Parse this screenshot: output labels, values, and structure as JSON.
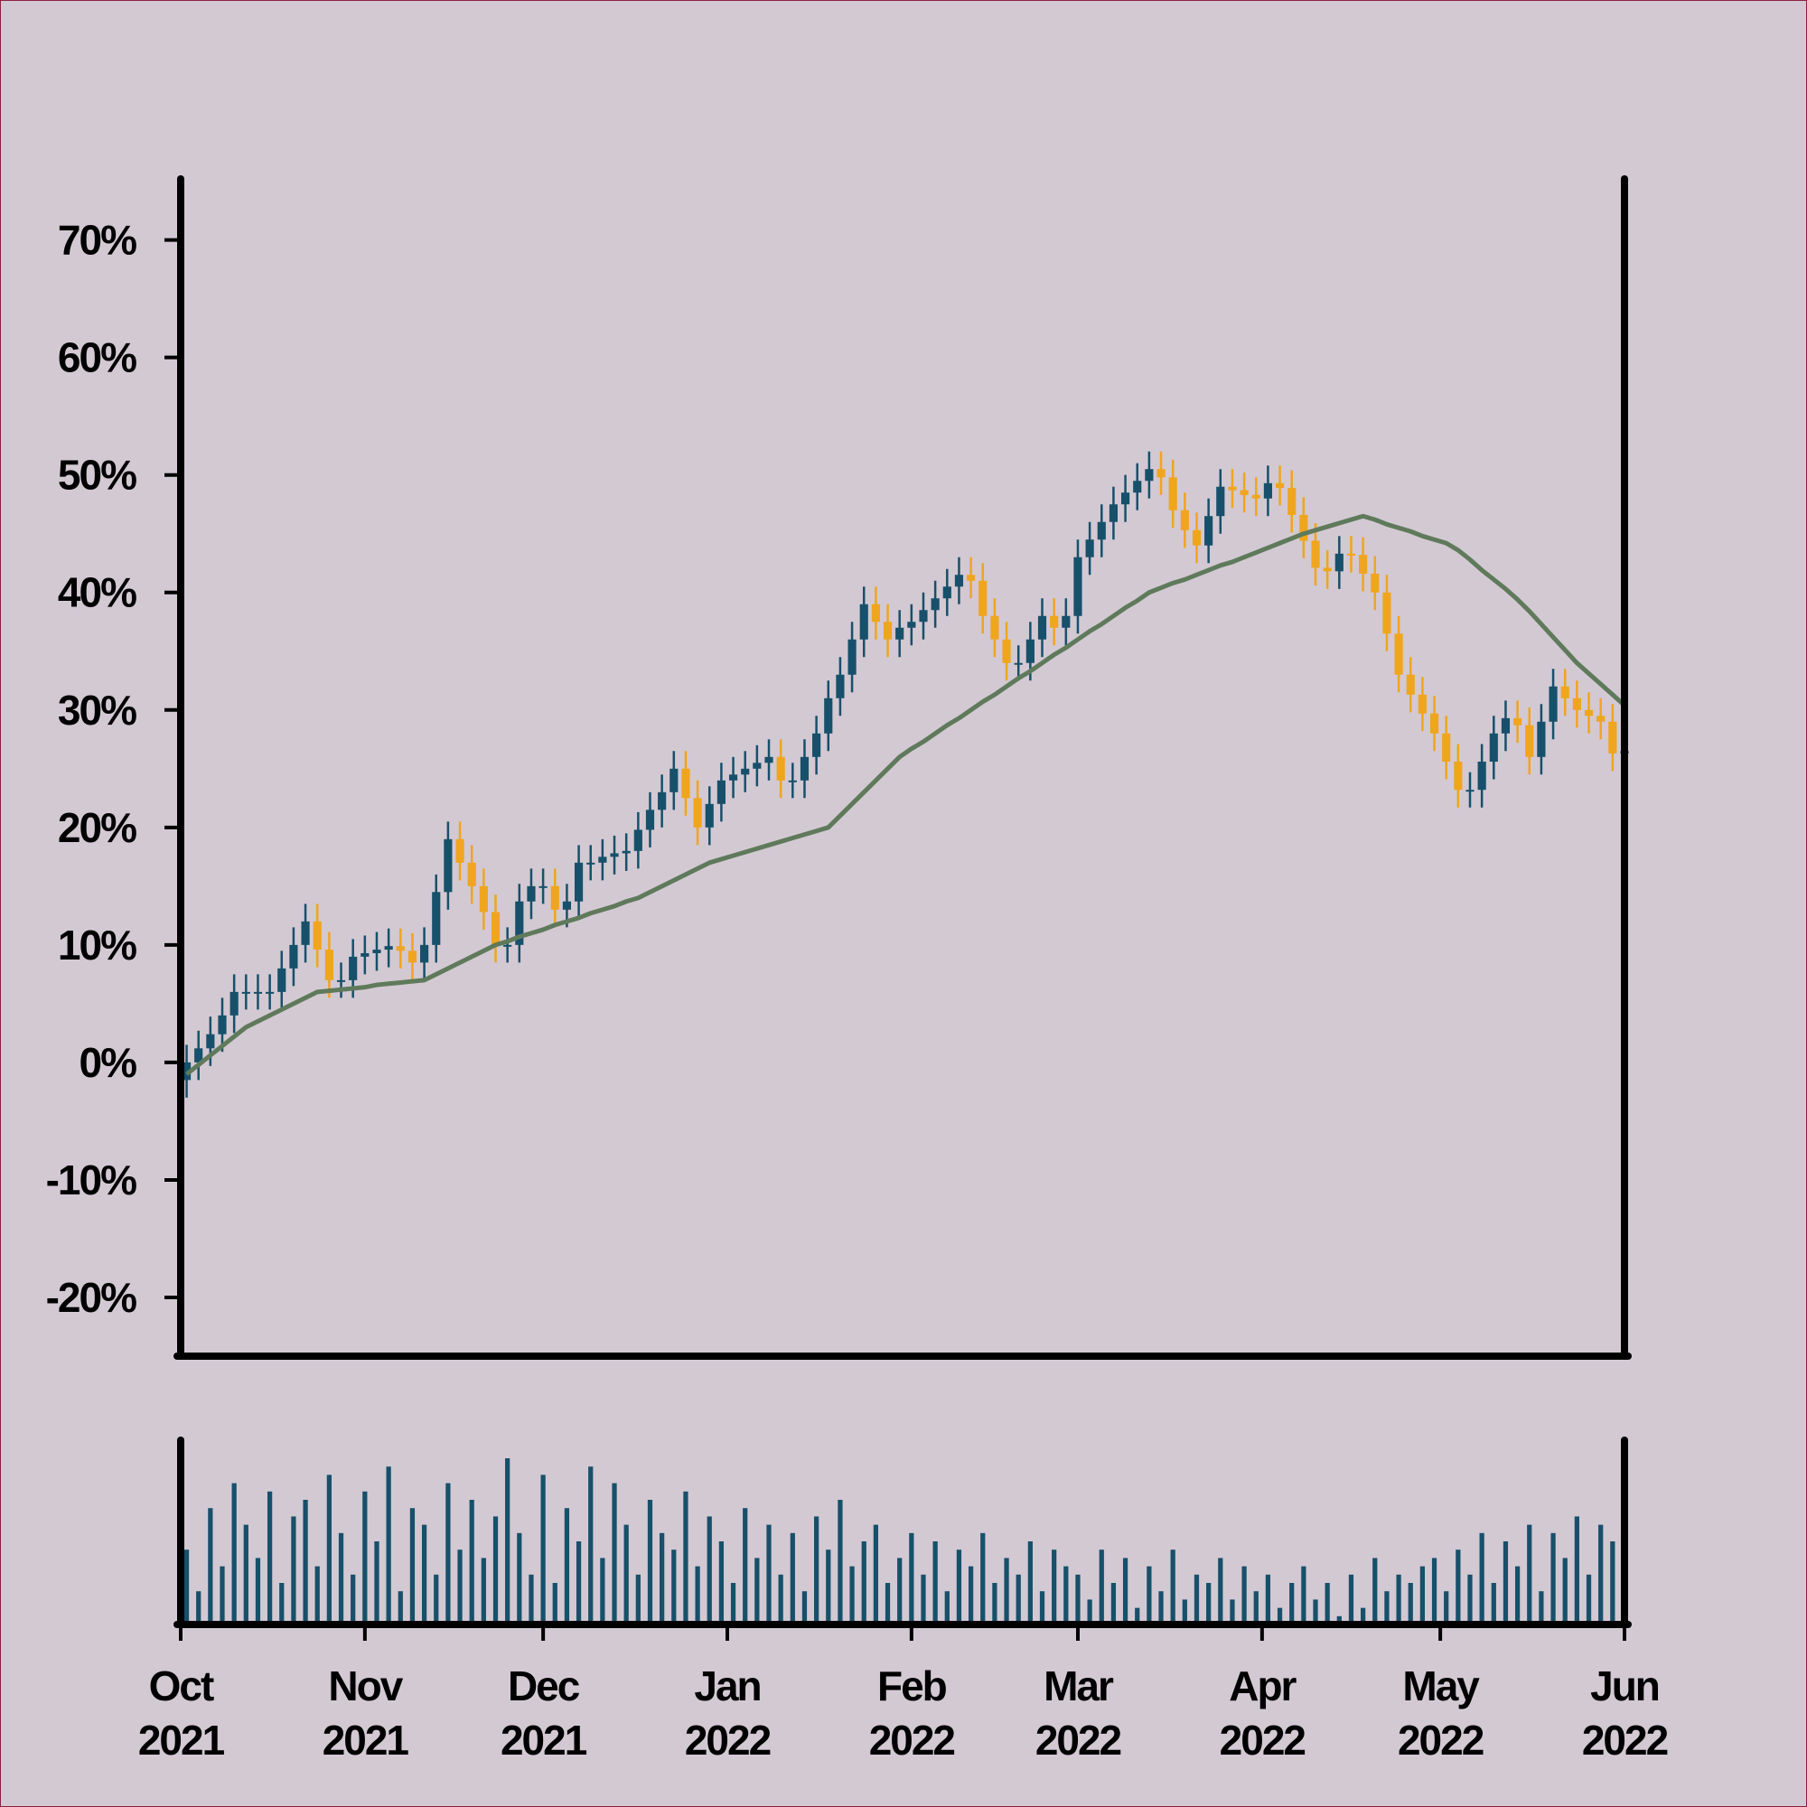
{
  "chart_data": {
    "type": "candlestick",
    "x": [
      0,
      2,
      4,
      6,
      8,
      10,
      12,
      14,
      16,
      18,
      20,
      22,
      24,
      26,
      28,
      30,
      32,
      34,
      36,
      38,
      40,
      42,
      44,
      46,
      48,
      50,
      52,
      54,
      56,
      58,
      60,
      62,
      64,
      66,
      68,
      70,
      72,
      74,
      76,
      78,
      80,
      82,
      84,
      86,
      88,
      90,
      92,
      94,
      96,
      98,
      100,
      102,
      104,
      106,
      108,
      110,
      112,
      114,
      116,
      118,
      120,
      122,
      124,
      126,
      128,
      130,
      132,
      134,
      136,
      138,
      140,
      142,
      144,
      146,
      148,
      150,
      152,
      154,
      156,
      158,
      160,
      162,
      164,
      166,
      168,
      170,
      172,
      174,
      176,
      178,
      180,
      182,
      184,
      186,
      188,
      190,
      192,
      194,
      196,
      198,
      200,
      202,
      204,
      206,
      208,
      210,
      212,
      214,
      216,
      218,
      220,
      222,
      224,
      226,
      228,
      230,
      232,
      234,
      236,
      238,
      240,
      242
    ],
    "xlim": [
      0,
      243
    ],
    "xticks": [
      {
        "value": 0,
        "label": "Oct\n2021"
      },
      {
        "value": 31,
        "label": "Nov\n2021"
      },
      {
        "value": 61,
        "label": "Dec\n2021"
      },
      {
        "value": 92,
        "label": "Jan\n2022"
      },
      {
        "value": 123,
        "label": "Feb\n2022"
      },
      {
        "value": 151,
        "label": "Mar\n2022"
      },
      {
        "value": 182,
        "label": "Apr\n2022"
      },
      {
        "value": 212,
        "label": "May\n2022"
      },
      {
        "value": 243,
        "label": "Jun\n2022"
      }
    ],
    "ylim": [
      -25,
      75.2
    ],
    "yticks": [
      {
        "value": -20,
        "label": "-20%"
      },
      {
        "value": -10,
        "label": "-10%"
      },
      {
        "value": 0,
        "label": "0%"
      },
      {
        "value": 10,
        "label": "10%"
      },
      {
        "value": 20,
        "label": "20%"
      },
      {
        "value": 30,
        "label": "30%"
      },
      {
        "value": 40,
        "label": "40%"
      },
      {
        "value": 50,
        "label": "50%"
      },
      {
        "value": 60,
        "label": "60%"
      },
      {
        "value": 70,
        "label": "70%"
      }
    ],
    "open": [
      -1.5,
      0,
      1.2,
      2.4,
      4,
      6,
      6,
      6,
      6,
      8,
      10,
      12,
      9.6,
      7,
      7,
      9,
      9.3,
      9.6,
      9.9,
      9.5,
      8.5,
      10,
      14.5,
      19,
      17,
      15,
      12.8,
      10,
      10,
      13.7,
      15,
      15,
      13,
      13.7,
      17,
      17,
      17.5,
      17.8,
      18,
      19.8,
      21.5,
      23,
      25,
      22.5,
      20,
      22,
      24,
      24.5,
      25,
      25.5,
      26,
      24,
      24,
      26,
      28,
      31,
      33,
      36,
      39,
      37.5,
      36,
      37,
      37.5,
      38.5,
      39.5,
      40.5,
      41.5,
      41,
      38,
      36,
      34,
      34,
      36,
      38,
      37,
      38,
      43,
      44.5,
      46,
      47.5,
      48.5,
      49.5,
      50.5,
      49.8,
      47,
      45.3,
      44,
      46.5,
      49,
      48.7,
      48.3,
      48,
      49.3,
      48.9,
      46.6,
      44.4,
      42.1,
      41.8,
      43.3,
      43.2,
      41.6,
      40,
      36.5,
      33,
      31.3,
      29.7,
      28,
      25.6,
      23.2,
      23.2,
      25.6,
      28,
      29.3,
      28.7,
      26,
      29,
      32,
      31,
      30,
      29.5,
      29,
      26.3
    ],
    "high": [
      1.5,
      2.7,
      3.9,
      5.5,
      7.5,
      7.5,
      7.5,
      7.5,
      9.5,
      11.5,
      13.5,
      13.5,
      11.1,
      8.5,
      10.5,
      10.8,
      11.1,
      11.4,
      11.4,
      11,
      11.5,
      16,
      20.5,
      20.5,
      18.5,
      16.5,
      14.3,
      11.5,
      15.2,
      16.5,
      16.5,
      16.5,
      15.2,
      18.5,
      18.5,
      19,
      19.3,
      19.5,
      21.3,
      23,
      24.5,
      26.5,
      26.5,
      24,
      23.5,
      25.5,
      26,
      26.5,
      27,
      27.5,
      27.5,
      25.5,
      27.5,
      29.5,
      32.5,
      34.5,
      37.5,
      40.5,
      40.5,
      39,
      38.5,
      39,
      40,
      41,
      42,
      43,
      43,
      42.5,
      39.5,
      37.5,
      35.5,
      37.5,
      39.5,
      39.5,
      39.5,
      44.5,
      46,
      47.5,
      49,
      50,
      51,
      52,
      52,
      51.3,
      48.5,
      46.8,
      48,
      50.5,
      50.5,
      50.2,
      49.8,
      50.8,
      50.8,
      50.4,
      48.1,
      45.9,
      43.6,
      44.8,
      44.8,
      44.7,
      43.1,
      41.5,
      38,
      34.5,
      32.8,
      31.2,
      29.5,
      27.1,
      24.7,
      27.1,
      29.5,
      30.8,
      30.8,
      30.2,
      30.5,
      33.5,
      33.5,
      32.5,
      31.5,
      31,
      30.5,
      28
    ],
    "low": [
      -3,
      -1.5,
      -0.3,
      0.9,
      2.5,
      4.5,
      4.5,
      4.5,
      4.5,
      6.5,
      8.5,
      8.1,
      5.5,
      5.5,
      5.5,
      7.5,
      7.8,
      8.1,
      8,
      7,
      7,
      8.5,
      13,
      15.5,
      13.5,
      11.3,
      8.5,
      8.5,
      8.5,
      12.2,
      13.5,
      11.5,
      11.5,
      12.2,
      15.5,
      15.5,
      16,
      16.3,
      16.5,
      18.3,
      20,
      21.5,
      21,
      18.5,
      18.5,
      20.5,
      22.5,
      23,
      23.5,
      24,
      22.5,
      22.5,
      22.5,
      24.5,
      26.5,
      29.5,
      31.5,
      34.5,
      36,
      34.5,
      34.5,
      35.5,
      36,
      37,
      38,
      39,
      39.5,
      36.5,
      34.5,
      32.5,
      32.5,
      32.5,
      34.5,
      35.5,
      35.5,
      36.5,
      41.5,
      43,
      44.5,
      46,
      47,
      48,
      48.3,
      45.5,
      43.8,
      42.5,
      42.5,
      45,
      47.2,
      46.8,
      46.5,
      46.5,
      47.4,
      45.1,
      42.9,
      40.6,
      40.3,
      40.3,
      41.7,
      40.1,
      38.5,
      35,
      31.5,
      29.8,
      28.2,
      26.5,
      24.1,
      21.7,
      21.7,
      21.7,
      24.1,
      26.5,
      27.2,
      24.5,
      24.5,
      27.5,
      29.5,
      28.5,
      28,
      27.5,
      24.8,
      24.8
    ],
    "close": [
      0,
      1.2,
      2.4,
      4,
      6,
      6,
      6,
      6,
      8,
      10,
      12,
      9.6,
      7,
      7,
      9,
      9.3,
      9.6,
      9.9,
      9.5,
      8.5,
      10,
      14.5,
      19,
      17,
      15,
      12.8,
      10,
      10,
      13.7,
      15,
      15,
      13,
      13.7,
      17,
      17,
      17.5,
      17.8,
      18,
      19.8,
      21.5,
      23,
      25,
      22.5,
      20,
      22,
      24,
      24.5,
      25,
      25.5,
      26,
      24,
      24,
      26,
      28,
      31,
      33,
      36,
      39,
      37.5,
      36,
      37,
      37.5,
      38.5,
      39.5,
      40.5,
      41.5,
      41,
      38,
      36,
      34,
      34,
      36,
      38,
      37,
      38,
      43,
      44.5,
      46,
      47.5,
      48.5,
      49.5,
      50.5,
      49.8,
      47,
      45.3,
      44,
      46.5,
      49,
      48.7,
      48.3,
      48,
      49.3,
      48.9,
      46.6,
      44.4,
      42.1,
      41.8,
      43.3,
      43.2,
      41.6,
      40,
      36.5,
      33,
      31.3,
      29.7,
      28,
      25.6,
      23.2,
      23.2,
      25.6,
      28,
      29.3,
      28.7,
      26,
      29,
      32,
      31,
      30,
      29.5,
      29,
      26.3,
      26.5
    ],
    "up_color": "#17506a",
    "down_color": "#f0a51e",
    "moving_average": {
      "color": "#5f7a5b",
      "values": [
        -1,
        -0.2,
        0.6,
        1.4,
        2.2,
        3,
        3.5,
        4,
        4.5,
        5,
        5.5,
        6,
        6.1,
        6.2,
        6.3,
        6.4,
        6.6,
        6.7,
        6.8,
        6.9,
        7,
        7.5,
        8,
        8.5,
        9,
        9.5,
        10,
        10.3,
        10.7,
        11,
        11.3,
        11.7,
        12,
        12.3,
        12.7,
        13,
        13.3,
        13.7,
        14,
        14.5,
        15,
        15.5,
        16,
        16.5,
        17,
        17.3,
        17.6,
        17.9,
        18.2,
        18.5,
        18.8,
        19.1,
        19.4,
        19.7,
        20,
        21,
        22,
        23,
        24,
        25,
        26,
        26.7,
        27.3,
        28,
        28.7,
        29.3,
        30,
        30.7,
        31.3,
        32,
        32.7,
        33.3,
        34,
        34.7,
        35.3,
        36,
        36.7,
        37.3,
        38,
        38.7,
        39.3,
        40,
        40.4,
        40.8,
        41.1,
        41.5,
        41.9,
        42.3,
        42.6,
        43,
        43.4,
        43.8,
        44.2,
        44.6,
        45,
        45.3,
        45.6,
        45.9,
        46.2,
        46.5,
        46.2,
        45.8,
        45.5,
        45.2,
        44.8,
        44.5,
        44.2,
        43.6,
        42.8,
        41.9,
        41.1,
        40.3,
        39.4,
        38.4,
        37.3,
        36.2,
        35.1,
        34,
        33.1,
        32.2,
        31.3,
        30.4
      ]
    },
    "volume": {
      "color": "#17506a",
      "values": [
        45,
        20,
        70,
        35,
        85,
        60,
        40,
        80,
        25,
        65,
        75,
        35,
        90,
        55,
        30,
        80,
        50,
        95,
        20,
        70,
        60,
        30,
        85,
        45,
        75,
        40,
        65,
        100,
        55,
        30,
        90,
        25,
        70,
        50,
        95,
        40,
        85,
        60,
        30,
        75,
        55,
        45,
        80,
        35,
        65,
        50,
        25,
        70,
        40,
        60,
        30,
        55,
        20,
        65,
        45,
        75,
        35,
        50,
        60,
        25,
        40,
        55,
        30,
        50,
        20,
        45,
        35,
        55,
        25,
        40,
        30,
        50,
        20,
        45,
        35,
        30,
        15,
        45,
        25,
        40,
        10,
        35,
        20,
        45,
        15,
        30,
        25,
        40,
        15,
        35,
        20,
        30,
        10,
        25,
        35,
        15,
        25,
        5,
        30,
        10,
        40,
        20,
        30,
        25,
        35,
        40,
        20,
        45,
        30,
        55,
        25,
        50,
        35,
        60,
        20,
        55,
        40,
        65,
        30,
        60,
        50,
        65
      ]
    }
  }
}
